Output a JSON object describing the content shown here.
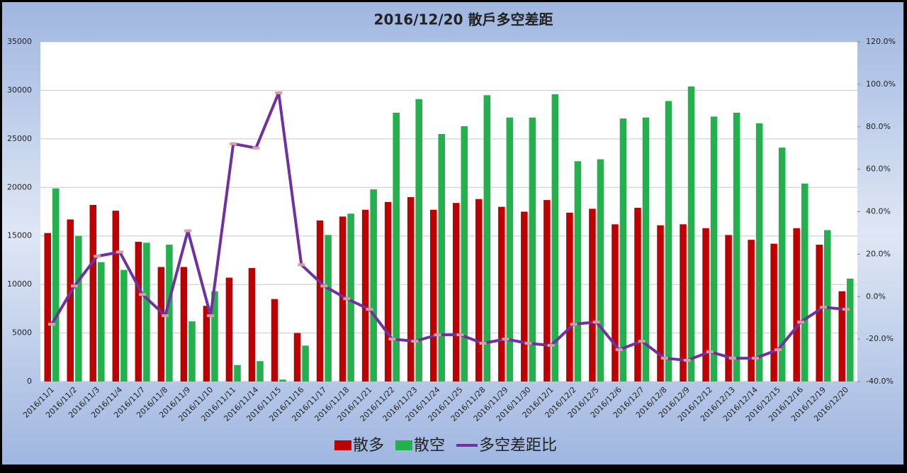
{
  "chart_data": {
    "type": "bar-line",
    "title": "2016/12/20 散戶多空差距",
    "categories": [
      "2016/11/1",
      "2016/11/2",
      "2016/11/3",
      "2016/11/4",
      "2016/11/7",
      "2016/11/8",
      "2016/11/9",
      "2016/11/10",
      "2016/11/11",
      "2016/11/14",
      "2016/11/15",
      "2016/11/16",
      "2016/11/17",
      "2016/11/18",
      "2016/11/21",
      "2016/11/22",
      "2016/11/23",
      "2016/11/24",
      "2016/11/25",
      "2016/11/28",
      "2016/11/29",
      "2016/11/30",
      "2016/12/1",
      "2016/12/2",
      "2016/12/5",
      "2016/12/6",
      "2016/12/7",
      "2016/12/8",
      "2016/12/9",
      "2016/12/12",
      "2016/12/13",
      "2016/12/14",
      "2016/12/15",
      "2016/12/16",
      "2016/12/19",
      "2016/12/20"
    ],
    "series": [
      {
        "name": "散多",
        "color": "#c00000",
        "type": "bar",
        "values": [
          15300,
          16700,
          18200,
          17600,
          14400,
          11800,
          11800,
          7800,
          10700,
          11700,
          8500,
          5000,
          16600,
          17000,
          17700,
          18500,
          19000,
          17700,
          18400,
          18800,
          18000,
          17500,
          18700,
          17400,
          17800,
          16200,
          17900,
          16100,
          16200,
          15800,
          15100,
          14600,
          14200,
          15800,
          14100,
          9300
        ]
      },
      {
        "name": "散空",
        "color": "#22b14c",
        "type": "bar",
        "values": [
          19900,
          15000,
          12300,
          11500,
          14300,
          14100,
          6200,
          9300,
          1700,
          2100,
          200,
          3700,
          15100,
          17300,
          19800,
          27700,
          29100,
          25500,
          26300,
          29500,
          27200,
          27200,
          29600,
          22700,
          22900,
          27100,
          27200,
          28900,
          30400,
          27300,
          27700,
          26600,
          24100,
          20400,
          15600,
          10600
        ]
      },
      {
        "name": "多空差距比",
        "color": "#7030a0",
        "type": "line",
        "axis": "y2",
        "values": [
          -13,
          5,
          19,
          21,
          1,
          -9,
          31,
          -9,
          72,
          70,
          96,
          15,
          5,
          -1,
          -6,
          -20,
          -21,
          -18,
          -18,
          -22,
          -20,
          -22,
          -23,
          -13,
          -12,
          -25,
          -21,
          -29,
          -30,
          -26,
          -29,
          -29,
          -25,
          -12,
          -5,
          -6
        ]
      }
    ],
    "ylim": [
      0,
      35000
    ],
    "yticks": [
      0,
      5000,
      10000,
      15000,
      20000,
      25000,
      30000,
      35000
    ],
    "y2lim": [
      -40,
      120
    ],
    "y2ticks": [
      {
        "value": -40,
        "label": "-40.0%"
      },
      {
        "value": -20,
        "label": "-20.0%"
      },
      {
        "value": 0,
        "label": "0.0%"
      },
      {
        "value": 20,
        "label": "20.0%"
      },
      {
        "value": 40,
        "label": "40.0%"
      },
      {
        "value": 60,
        "label": "60.0%"
      },
      {
        "value": 80,
        "label": "80.0%"
      },
      {
        "value": 100,
        "label": "100.0%"
      },
      {
        "value": 120,
        "label": "120.0%"
      }
    ],
    "grid": true
  }
}
